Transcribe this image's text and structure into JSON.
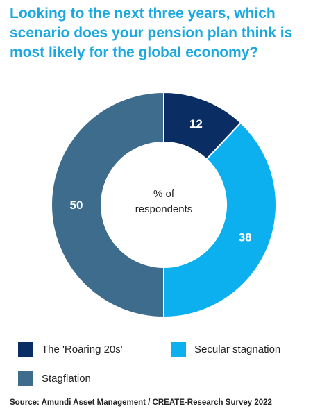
{
  "title": "Looking to the next three years, which scenario does your pension plan think is most likely for the global economy?",
  "source": "Source: Amundi Asset Management / CREATE-Research Survey 2022",
  "chart_data": {
    "type": "pie",
    "variant": "donut",
    "center_label": [
      "% of",
      "respondents"
    ],
    "categories": [
      "The 'Roaring 20s'",
      "Secular stagnation",
      "Stagflation"
    ],
    "values": [
      12,
      38,
      50
    ],
    "colors": [
      "#0a2d63",
      "#0cb0ef",
      "#3d6c8c"
    ],
    "legend": "bottom"
  }
}
